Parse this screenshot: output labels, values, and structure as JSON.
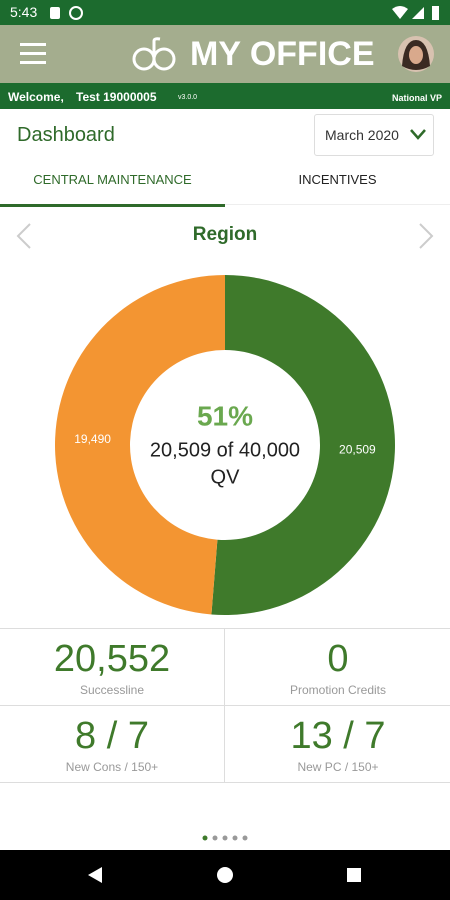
{
  "status_bar": {
    "time": "5:43"
  },
  "header": {
    "title": "MY OFFICE"
  },
  "welcome": {
    "greeting": "Welcome,",
    "user": "Test 19000005",
    "version": "v3.0.0",
    "role": "National VP"
  },
  "dashboard": {
    "title": "Dashboard",
    "month": "March 2020"
  },
  "tabs": [
    "CENTRAL MAINTENANCE",
    "INCENTIVES"
  ],
  "chart_data": {
    "type": "pie",
    "title": "Region",
    "values": [
      20509,
      19490
    ],
    "value_labels": [
      "20,509",
      "19,490"
    ],
    "colors": [
      "#3f7a2b",
      "#f39532"
    ],
    "center_percent": "51%",
    "center_detail": "20,509 of 40,000",
    "center_unit": "QV"
  },
  "stats": [
    {
      "value": "20,552",
      "label": "Successline"
    },
    {
      "value": "0",
      "label": "Promotion Credits"
    },
    {
      "value": "8 / 7",
      "label": "New Cons / 150+"
    },
    {
      "value": "13 / 7",
      "label": "New PC / 150+"
    }
  ]
}
